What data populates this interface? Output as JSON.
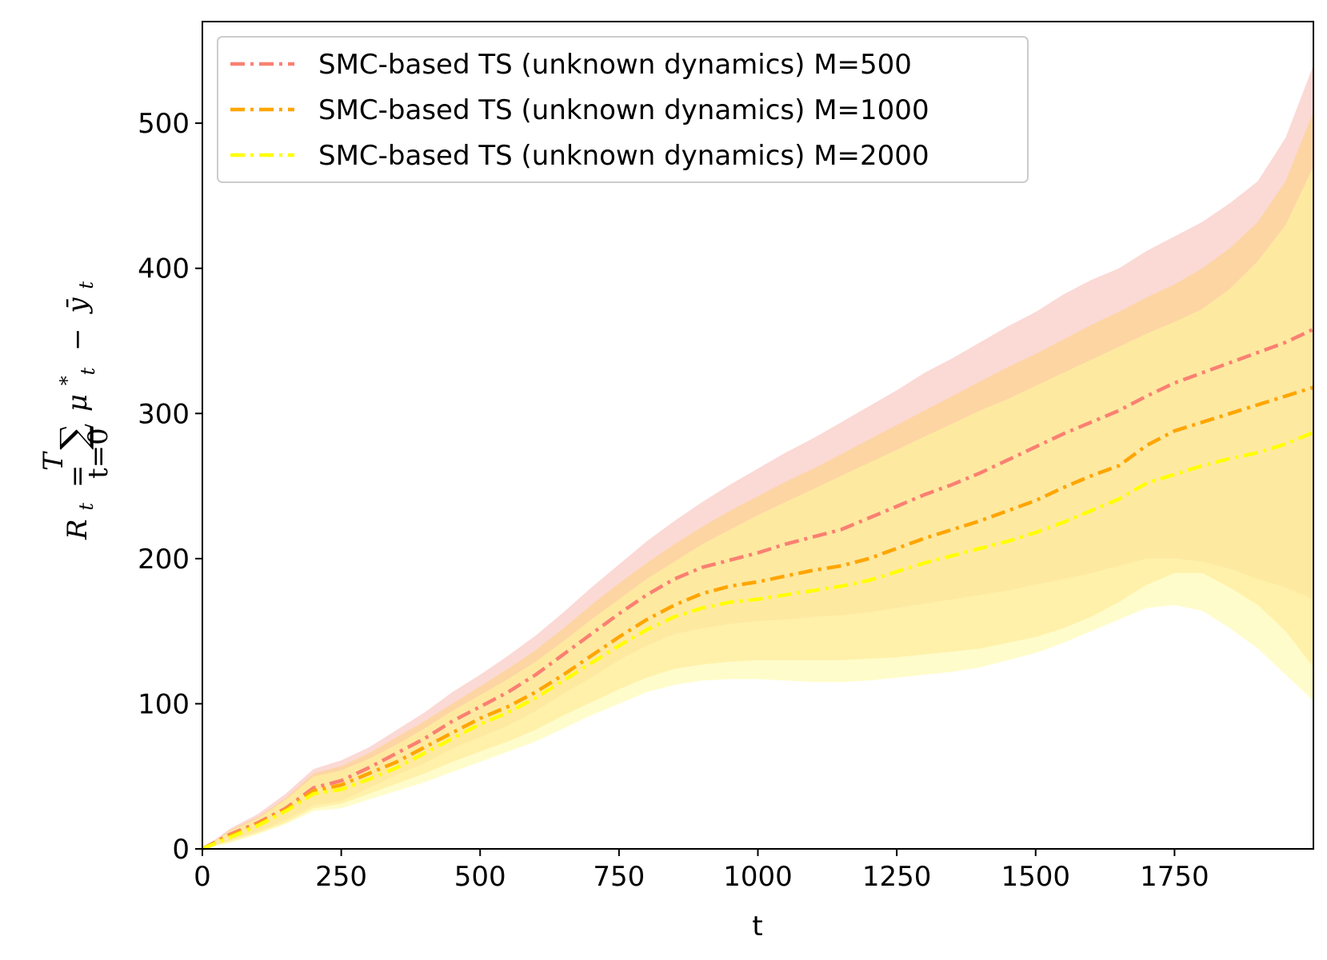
{
  "chart_data": {
    "type": "line",
    "title": "",
    "xlabel": "t",
    "ylabel": {
      "r": "R",
      "t_sub": "t",
      "eq": "=",
      "sum_upper": "T",
      "sum_sign": "∑",
      "sum_lower": "t=0",
      "mu": "μ",
      "mu_sup": "*",
      "mu_sub": "t",
      "minus": "−",
      "y": "ȳ",
      "y_sub": "t"
    },
    "xlim": [
      0,
      2000
    ],
    "ylim": [
      0,
      570
    ],
    "xticks": [
      0,
      250,
      500,
      750,
      1000,
      1250,
      1500,
      1750
    ],
    "yticks": [
      0,
      100,
      200,
      300,
      400,
      500
    ],
    "legend_position": "top-left",
    "x": [
      0,
      50,
      100,
      150,
      200,
      250,
      300,
      350,
      400,
      450,
      500,
      550,
      600,
      650,
      700,
      750,
      800,
      850,
      900,
      950,
      1000,
      1050,
      1100,
      1150,
      1200,
      1250,
      1300,
      1350,
      1400,
      1450,
      1500,
      1550,
      1600,
      1650,
      1700,
      1750,
      1800,
      1850,
      1900,
      1950,
      2000
    ],
    "series": [
      {
        "name": "SMC-based TS (unknown dynamics) M=500",
        "color": "#fa8072",
        "band_color": "#f8b9b2",
        "mean": [
          0,
          10,
          18,
          28,
          42,
          47,
          56,
          66,
          76,
          88,
          98,
          108,
          120,
          134,
          148,
          162,
          175,
          186,
          194,
          199,
          204,
          210,
          215,
          220,
          228,
          236,
          244,
          251,
          259,
          268,
          277,
          286,
          294,
          302,
          312,
          321,
          328,
          335,
          342,
          349,
          358
        ],
        "upper": [
          0,
          14,
          24,
          38,
          55,
          61,
          70,
          82,
          94,
          108,
          120,
          133,
          147,
          163,
          180,
          196,
          212,
          226,
          239,
          251,
          262,
          273,
          283,
          294,
          305,
          316,
          328,
          338,
          349,
          360,
          370,
          382,
          392,
          400,
          412,
          422,
          432,
          445,
          460,
          490,
          540
        ],
        "lower": [
          0,
          6,
          12,
          20,
          30,
          33,
          42,
          51,
          59,
          69,
          77,
          85,
          95,
          107,
          118,
          130,
          140,
          148,
          152,
          155,
          157,
          158,
          160,
          161,
          163,
          166,
          169,
          172,
          175,
          178,
          182,
          186,
          190,
          195,
          200,
          200,
          198,
          193,
          186,
          180,
          172
        ]
      },
      {
        "name": "SMC-based TS (unknown dynamics) M=1000",
        "color": "#ffa500",
        "band_color": "#ffd27a",
        "mean": [
          0,
          9,
          17,
          27,
          40,
          44,
          52,
          60,
          70,
          80,
          90,
          98,
          108,
          120,
          133,
          146,
          158,
          168,
          176,
          181,
          184,
          188,
          192,
          195,
          200,
          207,
          214,
          220,
          226,
          233,
          240,
          249,
          257,
          264,
          278,
          288,
          294,
          300,
          306,
          312,
          318
        ],
        "upper": [
          0,
          13,
          22,
          35,
          52,
          57,
          66,
          77,
          88,
          100,
          112,
          124,
          137,
          152,
          168,
          183,
          197,
          210,
          222,
          233,
          243,
          253,
          262,
          272,
          282,
          292,
          302,
          312,
          322,
          332,
          341,
          351,
          361,
          370,
          380,
          389,
          400,
          414,
          432,
          460,
          508
        ],
        "lower": [
          0,
          5,
          11,
          18,
          28,
          31,
          38,
          45,
          52,
          60,
          67,
          74,
          82,
          92,
          101,
          110,
          118,
          124,
          127,
          129,
          130,
          130,
          130,
          130,
          131,
          132,
          134,
          136,
          138,
          142,
          146,
          152,
          160,
          170,
          182,
          190,
          190,
          180,
          168,
          150,
          125
        ]
      },
      {
        "name": "SMC-based TS (unknown dynamics) M=2000",
        "color": "#ffff00",
        "band_color": "#fffaa0",
        "mean": [
          0,
          8,
          16,
          26,
          38,
          41,
          48,
          56,
          66,
          76,
          86,
          94,
          104,
          116,
          128,
          140,
          151,
          160,
          166,
          170,
          172,
          175,
          178,
          181,
          185,
          191,
          197,
          202,
          207,
          212,
          218,
          225,
          233,
          241,
          252,
          258,
          264,
          269,
          273,
          279,
          287
        ],
        "upper": [
          0,
          12,
          21,
          34,
          50,
          54,
          62,
          72,
          83,
          95,
          106,
          117,
          129,
          143,
          158,
          172,
          186,
          198,
          210,
          220,
          230,
          239,
          248,
          257,
          266,
          275,
          284,
          293,
          302,
          310,
          319,
          328,
          337,
          346,
          355,
          363,
          372,
          386,
          405,
          430,
          470
        ],
        "lower": [
          0,
          4,
          10,
          17,
          26,
          28,
          34,
          40,
          46,
          53,
          60,
          67,
          74,
          83,
          92,
          100,
          108,
          113,
          116,
          117,
          117,
          116,
          115,
          115,
          116,
          118,
          120,
          122,
          125,
          130,
          135,
          142,
          150,
          158,
          166,
          168,
          164,
          152,
          138,
          120,
          102
        ]
      }
    ]
  }
}
